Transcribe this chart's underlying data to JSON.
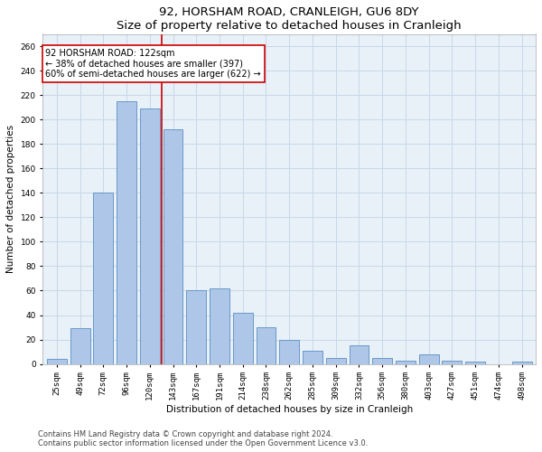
{
  "title": "92, HORSHAM ROAD, CRANLEIGH, GU6 8DY",
  "subtitle": "Size of property relative to detached houses in Cranleigh",
  "xlabel": "Distribution of detached houses by size in Cranleigh",
  "ylabel": "Number of detached properties",
  "categories": [
    "25sqm",
    "49sqm",
    "72sqm",
    "96sqm",
    "120sqm",
    "143sqm",
    "167sqm",
    "191sqm",
    "214sqm",
    "238sqm",
    "262sqm",
    "285sqm",
    "309sqm",
    "332sqm",
    "356sqm",
    "380sqm",
    "403sqm",
    "427sqm",
    "451sqm",
    "474sqm",
    "498sqm"
  ],
  "values": [
    4,
    29,
    140,
    215,
    209,
    192,
    60,
    62,
    42,
    30,
    20,
    11,
    5,
    15,
    5,
    3,
    8,
    3,
    2,
    0,
    2
  ],
  "bar_color": "#aec6e8",
  "bar_edge_color": "#5a8fc2",
  "vline_x": 4.5,
  "vline_color": "#cc0000",
  "annotation_text": "92 HORSHAM ROAD: 122sqm\n← 38% of detached houses are smaller (397)\n60% of semi-detached houses are larger (622) →",
  "annotation_box_color": "#ffffff",
  "annotation_box_edge_color": "#cc0000",
  "ylim": [
    0,
    270
  ],
  "yticks": [
    0,
    20,
    40,
    60,
    80,
    100,
    120,
    140,
    160,
    180,
    200,
    220,
    240,
    260
  ],
  "bg_color": "#e8f0f8",
  "fig_color": "#ffffff",
  "grid_color": "#c8d8e8",
  "footer_line1": "Contains HM Land Registry data © Crown copyright and database right 2024.",
  "footer_line2": "Contains public sector information licensed under the Open Government Licence v3.0.",
  "title_fontsize": 9.5,
  "axis_label_fontsize": 7.5,
  "tick_fontsize": 6.5,
  "annotation_fontsize": 7,
  "footer_fontsize": 6
}
